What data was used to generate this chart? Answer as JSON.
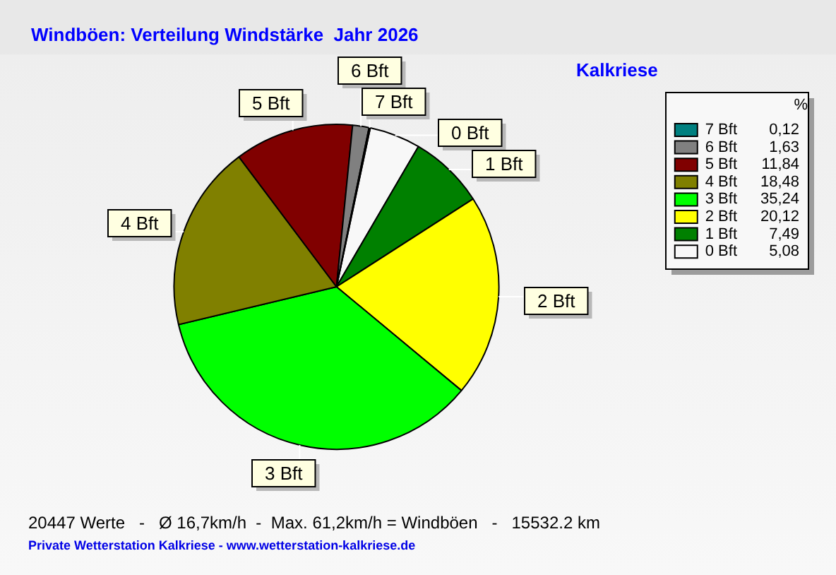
{
  "chart_data": {
    "type": "pie",
    "title": "Windböen: Verteilung Windstärke  Jahr 2026",
    "subtitle": "Kalkriese",
    "legend_title": "%",
    "categories": [
      "0 Bft",
      "1 Bft",
      "2 Bft",
      "3 Bft",
      "4 Bft",
      "5 Bft",
      "6 Bft",
      "7 Bft"
    ],
    "values": [
      5.08,
      7.49,
      20.12,
      35.24,
      18.48,
      11.84,
      1.63,
      0.12
    ],
    "value_labels": [
      "5,08",
      "7,49",
      "20,12",
      "35,24",
      "18,48",
      "11,84",
      "1,63",
      "0,12"
    ],
    "colors": [
      "#f8f8f8",
      "#008000",
      "#ffff00",
      "#00ff00",
      "#808000",
      "#800000",
      "#808080",
      "#008080"
    ],
    "legend": "top right",
    "annotations": [
      "20447 Werte   -   Ø 16,7km/h  -  Max. 61,2km/h = Windböen   -   15532.2 km",
      "Private Wetterstation Kalkriese - www.wetterstation-kalkriese.de"
    ]
  }
}
